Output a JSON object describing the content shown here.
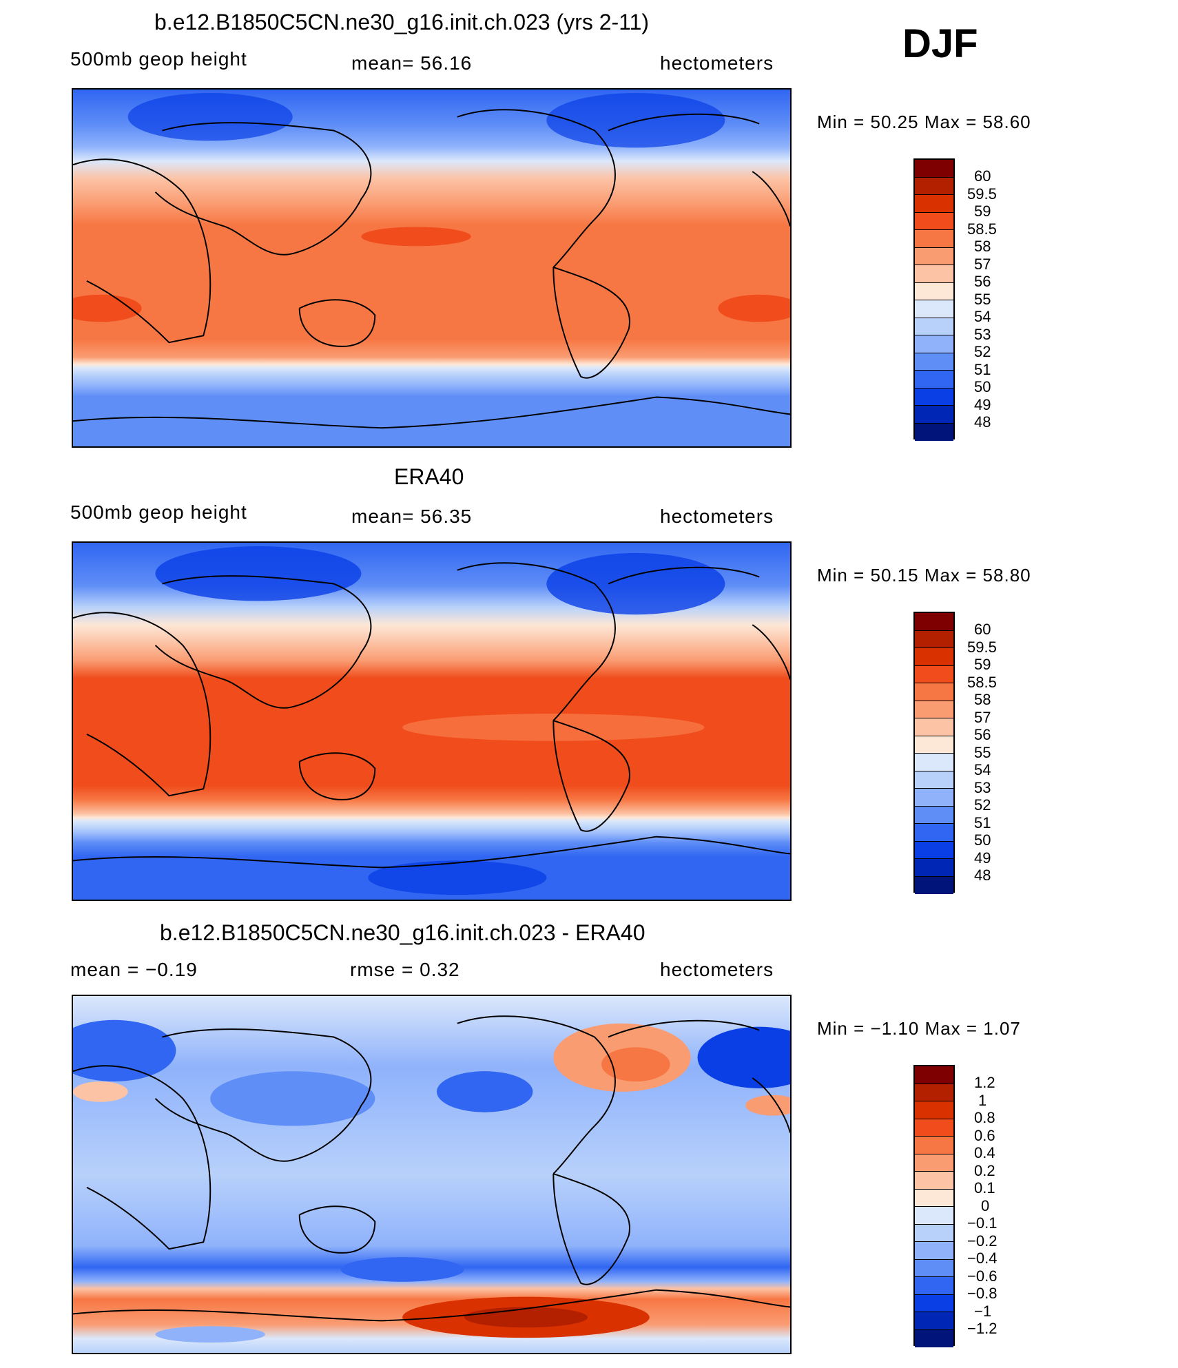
{
  "season": "DJF",
  "panels": [
    {
      "title": "b.e12.B1850C5CN.ne30_g16.init.ch.023 (yrs 2-11)",
      "variable": "500mb geop height",
      "stat": "mean=   56.16",
      "units": "hectometers",
      "minmax": "Min =    50.25 Max =    58.60",
      "levels": [
        "60",
        "59.5",
        "59",
        "58.5",
        "58",
        "57",
        "56",
        "55",
        "54",
        "53",
        "52",
        "51",
        "50",
        "49",
        "48"
      ]
    },
    {
      "title": "ERA40",
      "variable": "500mb geop height",
      "stat": "mean=   56.35",
      "units": "hectometers",
      "minmax": "Min =    50.15 Max =    58.80",
      "levels": [
        "60",
        "59.5",
        "59",
        "58.5",
        "58",
        "57",
        "56",
        "55",
        "54",
        "53",
        "52",
        "51",
        "50",
        "49",
        "48"
      ]
    },
    {
      "title": "b.e12.B1850C5CN.ne30_g16.init.ch.023 - ERA40",
      "variable": "mean =   −0.19",
      "stat": "rmse =    0.32",
      "units": "hectometers",
      "minmax": "Min =   −1.10 Max =     1.07",
      "levels": [
        "1.2",
        "1",
        "0.8",
        "0.6",
        "0.4",
        "0.2",
        "0.1",
        "0",
        "−0.1",
        "−0.2",
        "−0.4",
        "−0.6",
        "−0.8",
        "−1",
        "−1.2"
      ]
    }
  ],
  "colors": {
    "scale": [
      "#7f0000",
      "#b32000",
      "#d93200",
      "#f04c1c",
      "#f77744",
      "#fa9c72",
      "#fcc3a5",
      "#fde7d7",
      "#dbe8fb",
      "#b8d1fb",
      "#8fb2fb",
      "#5f8ef7",
      "#3066f2",
      "#0a3fe6",
      "#0026b5",
      "#00147a"
    ]
  }
}
